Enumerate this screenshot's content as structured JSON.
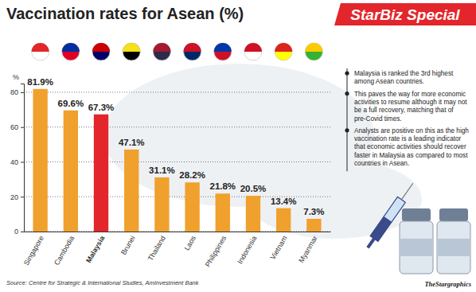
{
  "chart_data": {
    "type": "bar",
    "title": "Vaccination rates for Asean (%)",
    "banner": "StarBiz Special",
    "ylabel": "%",
    "categories": [
      "Singapore",
      "Cambodia",
      "Malaysia",
      "Brunei",
      "Thailand",
      "Laos",
      "Philippines",
      "Indonesia",
      "Vietnam",
      "Myanmar"
    ],
    "values": [
      81.9,
      69.6,
      67.3,
      47.1,
      31.1,
      28.2,
      21.8,
      20.5,
      13.4,
      7.3
    ],
    "value_labels": [
      "81.9%",
      "69.6%",
      "67.3%",
      "47.1%",
      "31.1%",
      "28.2%",
      "21.8%",
      "20.5%",
      "13.4%",
      "7.3%"
    ],
    "colors": [
      "#f0a02c",
      "#f0a02c",
      "#e2262b",
      "#f0a02c",
      "#f0a02c",
      "#f0a02c",
      "#f0a02c",
      "#f0a02c",
      "#f0a02c",
      "#f0a02c"
    ],
    "data_labels": true,
    "ylim": [
      0,
      85
    ],
    "yticks": [
      0,
      20,
      40,
      60,
      80
    ],
    "grid": true,
    "notes": [
      "Malaysia is ranked the 3rd highest among Asean countries.",
      "This paves the way for more economic activities to resume although it may not be a full recovery, matching that of pre-Covid times.",
      "Analysts are positive on this as the high vaccination rate is a leading indicator that economic activities should recover faster in Malaysia as compared to most countries in Asean."
    ],
    "source": "Source: Centre for Strategic & International Studies, AmInvestment Bank",
    "credit": "TheStargraphics"
  }
}
